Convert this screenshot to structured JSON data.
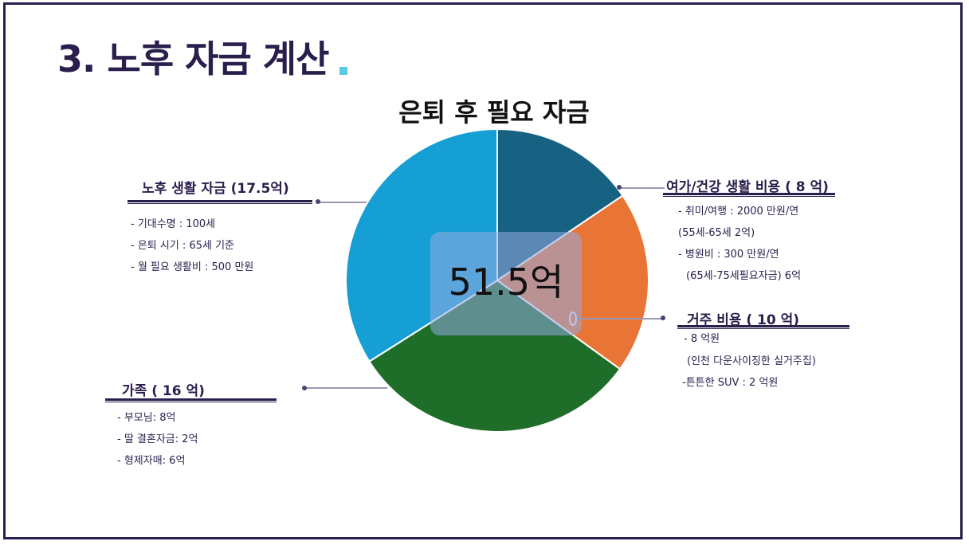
{
  "page": {
    "title": "3. 노후 자금 계산",
    "accent_color": "#5bc8e8",
    "title_color": "#2a1e4d"
  },
  "chart_data": {
    "type": "pie",
    "title": "은퇴 후 필요 자금",
    "center_label": "51.5억",
    "categories": [
      "여가/건강 생활 비용",
      "거주 비용",
      "가족",
      "노후 생활 자금"
    ],
    "values": [
      8,
      10,
      16,
      17.5
    ],
    "colors": [
      "#176182",
      "#e87535",
      "#1e6e2a",
      "#159fd5"
    ]
  },
  "groups": {
    "leisure": {
      "title": "여가/건강 생활 비용 ( 8 억)",
      "items": [
        "- 취미/여행 : 2000 만원/연",
        "(55세-65세 2억)",
        "- 병원비 : 300 만원/연",
        "(65세-75세필요자금) 6억"
      ]
    },
    "housing": {
      "title": "거주 비용 ( 10 억)",
      "items": [
        "- 8 억원",
        "(인천 다운사이징한 실거주집)",
        "-튼튼한  SUV : 2 억원"
      ]
    },
    "family": {
      "title": "가족 ( 16 억)",
      "items": [
        "- 부모님: 8억",
        "- 딸 결혼자금: 2억",
        "- 형제자매: 6억"
      ]
    },
    "living": {
      "title": "노후 생활 자금 (17.5억)",
      "items": [
        "- 기대수명 : 100세",
        "- 은퇴 시기 : 65세 기준",
        "- 월 필요 생활비 : 500 만원"
      ]
    }
  }
}
